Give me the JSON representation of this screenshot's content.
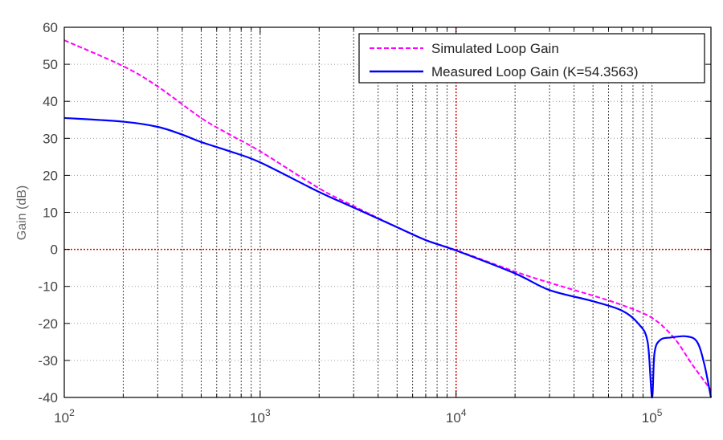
{
  "chart_data": {
    "type": "line",
    "title": "",
    "xlabel": "",
    "ylabel": "Gain (dB)",
    "xscale": "log",
    "xlim": [
      100,
      200000
    ],
    "ylim": [
      -40,
      60
    ],
    "yticks": [
      60,
      50,
      40,
      30,
      20,
      10,
      0,
      -10,
      -20,
      -30,
      -40
    ],
    "xticks": [
      {
        "value": 100,
        "base": "10",
        "exp": "2"
      },
      {
        "value": 1000,
        "base": "10",
        "exp": "3"
      },
      {
        "value": 10000,
        "base": "10",
        "exp": "4"
      },
      {
        "value": 100000,
        "base": "10",
        "exp": "5"
      }
    ],
    "grid": true,
    "legend_position": "top-right",
    "reference_lines": [
      {
        "axis": "x",
        "value": 10000,
        "color": "#dd0000"
      },
      {
        "axis": "y",
        "value": 0,
        "color": "#dd0000"
      }
    ],
    "series": [
      {
        "name": "Simulated Loop Gain",
        "color": "#ff00ff",
        "style": "dashed",
        "x": [
          100,
          200,
          300,
          500,
          700,
          1000,
          2000,
          3000,
          5000,
          7000,
          10000,
          20000,
          30000,
          50000,
          70000,
          100000,
          130000,
          160000,
          200000
        ],
        "y": [
          56.5,
          49.5,
          44,
          35.5,
          31,
          26.5,
          16.5,
          11.7,
          6,
          2.5,
          -0.2,
          -6,
          -9,
          -12.5,
          -15,
          -18.5,
          -24,
          -31,
          -38
        ]
      },
      {
        "name": "Measured Loop Gain (K=54.3563)",
        "color": "#0000ff",
        "style": "solid",
        "x": [
          100,
          200,
          300,
          400,
          500,
          700,
          1000,
          2000,
          3000,
          5000,
          7000,
          10000,
          20000,
          30000,
          50000,
          70000,
          85000,
          95000,
          100000,
          103000,
          110000,
          125000,
          150000,
          170000,
          185000,
          200000
        ],
        "y": [
          35.5,
          34.5,
          33.1,
          31,
          29,
          26.5,
          23.5,
          15.5,
          11.3,
          6,
          2.5,
          -0.3,
          -6.5,
          -11,
          -14,
          -16.5,
          -20,
          -25,
          -40,
          -28,
          -24.5,
          -23.8,
          -23.5,
          -25,
          -31,
          -40
        ]
      }
    ]
  }
}
